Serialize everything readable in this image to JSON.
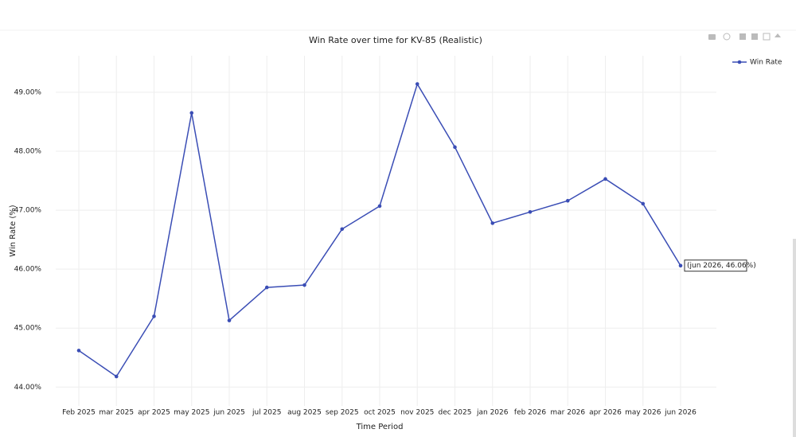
{
  "chart_data": {
    "type": "line",
    "title": "Win Rate over time for KV-85 (Realistic)",
    "x_label": "Time Period",
    "y_label": "Win Rate (%)",
    "categories": [
      "Feb 2025",
      "mar 2025",
      "apr 2025",
      "may 2025",
      "jun 2025",
      "jul 2025",
      "aug 2025",
      "sep 2025",
      "oct 2025",
      "nov 2025",
      "dec 2025",
      "jan 2026",
      "feb 2026",
      "mar 2026",
      "apr 2026",
      "may 2026",
      "jun 2026"
    ],
    "series": [
      {
        "name": "Win Rate",
        "color": "#3a4db5",
        "values": [
          44.62,
          44.18,
          45.2,
          48.65,
          45.13,
          45.69,
          45.73,
          46.68,
          47.07,
          49.14,
          48.07,
          46.78,
          46.97,
          47.16,
          47.53,
          47.11,
          46.06
        ]
      }
    ],
    "ylim": [
      43.68,
      49.62
    ],
    "yticks": [
      {
        "value": 44,
        "label": "44.00%"
      },
      {
        "value": 45,
        "label": "45.00%"
      },
      {
        "value": 46,
        "label": "46.00%"
      },
      {
        "value": 47,
        "label": "47.00%"
      },
      {
        "value": 48,
        "label": "48.00%"
      },
      {
        "value": 49,
        "label": "49.00%"
      }
    ],
    "grid": true,
    "legend": "top-right",
    "hover_label": "(jun 2026, 46.06%)"
  }
}
